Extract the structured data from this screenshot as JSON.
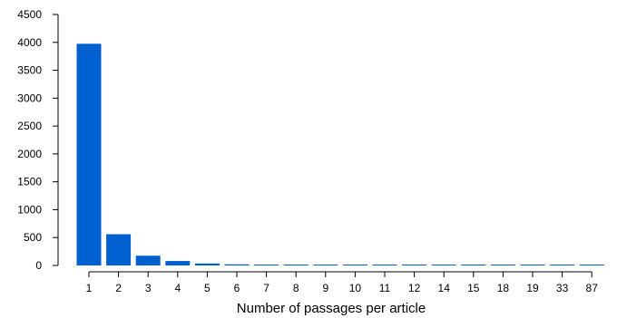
{
  "chart_data": {
    "type": "bar",
    "title": "",
    "xlabel": "Number of passages per article",
    "ylabel": "",
    "categories": [
      "1",
      "2",
      "3",
      "4",
      "5",
      "6",
      "7",
      "8",
      "9",
      "10",
      "11",
      "12",
      "14",
      "15",
      "18",
      "19",
      "33",
      "87"
    ],
    "values": [
      3975,
      560,
      175,
      80,
      35,
      20,
      12,
      5,
      10,
      3,
      3,
      2,
      2,
      2,
      1,
      1,
      1,
      1
    ],
    "ylim": [
      0,
      4500
    ],
    "yticks": [
      0,
      500,
      1000,
      1500,
      2000,
      2500,
      3000,
      3500,
      4000,
      4500
    ],
    "bar_color": "#0060d0",
    "grid": false,
    "legend": "none"
  }
}
